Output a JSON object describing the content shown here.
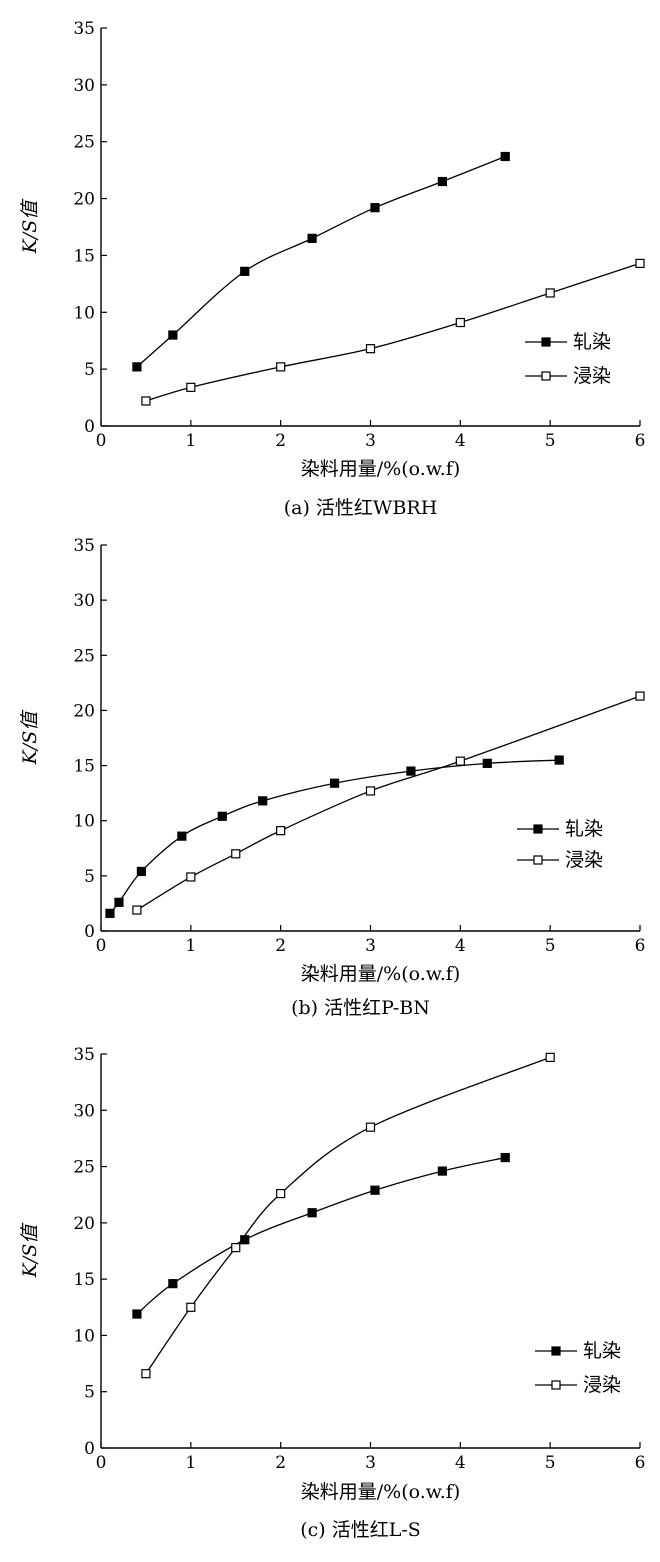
{
  "chart_data": [
    {
      "type": "line",
      "caption": "(a) 活性红WBRH",
      "xlabel": "染料用量/%(o.w.f)",
      "ylabel": "K/S值",
      "xlim": [
        0,
        6
      ],
      "ylim": [
        0,
        35
      ],
      "xticks": [
        "0",
        "1",
        "2",
        "3",
        "4",
        "5",
        "6"
      ],
      "yticks": [
        "0",
        "5",
        "10",
        "15",
        "20",
        "25",
        "30",
        "35"
      ],
      "legend": "right",
      "series": [
        {
          "name": "轧染",
          "marker": "filled-square",
          "x": [
            0.4,
            0.8,
            1.6,
            2.35,
            3.05,
            3.8,
            4.5
          ],
          "y": [
            5.2,
            8.0,
            13.6,
            16.5,
            19.2,
            21.5,
            23.7
          ]
        },
        {
          "name": "浸染",
          "marker": "open-square",
          "x": [
            0.5,
            1.0,
            2.0,
            3.0,
            4.0,
            5.0,
            6.0
          ],
          "y": [
            2.2,
            3.4,
            5.2,
            6.8,
            9.1,
            11.7,
            14.3
          ]
        }
      ]
    },
    {
      "type": "line",
      "caption": "(b) 活性红P-BN",
      "xlabel": "染料用量/%(o.w.f)",
      "ylabel": "K/S值",
      "xlim": [
        0,
        6
      ],
      "ylim": [
        0,
        35
      ],
      "xticks": [
        "0",
        "1",
        "2",
        "3",
        "4",
        "5",
        "6"
      ],
      "yticks": [
        "0",
        "5",
        "10",
        "15",
        "20",
        "25",
        "30",
        "35"
      ],
      "legend": "right",
      "series": [
        {
          "name": "轧染",
          "marker": "filled-square",
          "x": [
            0.1,
            0.2,
            0.45,
            0.9,
            1.35,
            1.8,
            2.6,
            3.45,
            4.3,
            5.1
          ],
          "y": [
            1.6,
            2.6,
            5.4,
            8.6,
            10.4,
            11.8,
            13.4,
            14.5,
            15.2,
            15.5
          ]
        },
        {
          "name": "浸染",
          "marker": "open-square",
          "x": [
            0.4,
            1.0,
            1.5,
            2.0,
            3.0,
            4.0,
            6.0
          ],
          "y": [
            1.9,
            4.9,
            7.0,
            9.1,
            12.7,
            15.4,
            21.3
          ]
        }
      ]
    },
    {
      "type": "line",
      "caption": "(c) 活性红L-S",
      "xlabel": "染料用量/%(o.w.f)",
      "ylabel": "K/S值",
      "xlim": [
        0,
        6
      ],
      "ylim": [
        0,
        35
      ],
      "xticks": [
        "0",
        "1",
        "2",
        "3",
        "4",
        "5",
        "6"
      ],
      "yticks": [
        "0",
        "5",
        "10",
        "15",
        "20",
        "25",
        "30",
        "35"
      ],
      "legend": "right",
      "series": [
        {
          "name": "轧染",
          "marker": "filled-square",
          "x": [
            0.4,
            0.8,
            1.6,
            2.35,
            3.05,
            3.8,
            4.5
          ],
          "y": [
            11.9,
            14.6,
            18.5,
            20.9,
            22.9,
            24.6,
            25.8
          ]
        },
        {
          "name": "浸染",
          "marker": "open-square",
          "x": [
            0.5,
            1.0,
            1.5,
            2.0,
            3.0,
            5.0
          ],
          "y": [
            6.6,
            12.5,
            17.8,
            22.6,
            28.5,
            34.7
          ]
        }
      ]
    }
  ]
}
